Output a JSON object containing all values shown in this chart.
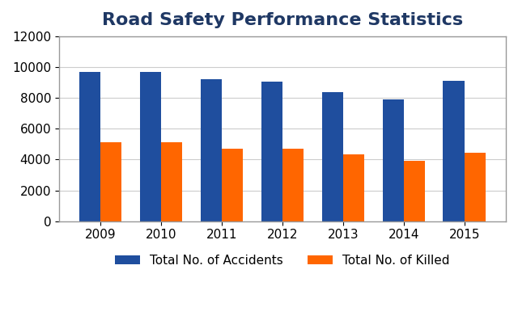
{
  "title": "Road Safety Performance Statistics",
  "years": [
    "2009",
    "2010",
    "2011",
    "2012",
    "2013",
    "2014",
    "2015"
  ],
  "accidents": [
    9700,
    9700,
    9200,
    9050,
    8400,
    7900,
    9100
  ],
  "killed": [
    5100,
    5100,
    4700,
    4700,
    4350,
    3900,
    4450
  ],
  "accidents_color": "#1F4E9E",
  "killed_color": "#FF6600",
  "ylim": [
    0,
    12000
  ],
  "yticks": [
    0,
    2000,
    4000,
    6000,
    8000,
    10000,
    12000
  ],
  "legend_accidents": "Total No. of Accidents",
  "legend_killed": "Total No. of Killed",
  "title_fontsize": 16,
  "tick_fontsize": 11,
  "legend_fontsize": 11,
  "background_color": "#FFFFFF",
  "border_color": "#AAAAAA"
}
